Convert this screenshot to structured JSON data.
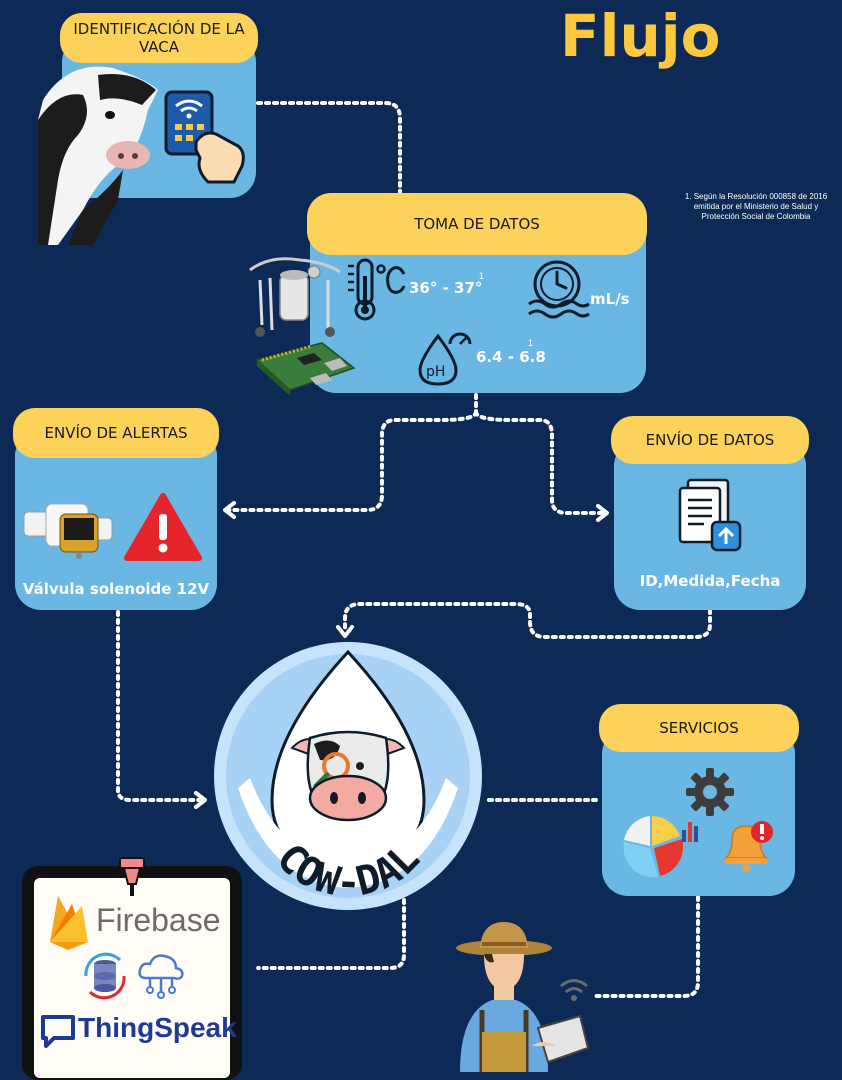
{
  "title": "Flujo",
  "footnote": "1.  Según la Resolución 000858 de 2016 emitida por el Ministerio de Salud y Protección Social de Colombia",
  "nodes": {
    "identificacion": {
      "label": "IDENTIFICACIÓN DE LA VACA"
    },
    "toma_datos": {
      "label": "TOMA DE DATOS",
      "temperature": "36° - 37°",
      "temperature_ref": "1",
      "flow_unit": "mL/s",
      "ph": "6.4 - 6.8",
      "ph_ref": "1"
    },
    "alertas": {
      "label": "ENVÍO DE ALERTAS",
      "caption": "Válvula solenoide 12V"
    },
    "envio_datos": {
      "label": "ENVÍO DE DATOS",
      "caption": "ID,Medida,Fecha"
    },
    "servicios": {
      "label": "SERVICIOS"
    },
    "center": {
      "brand": "COW-DAL"
    },
    "storage": {
      "firebase": "Firebase",
      "thingspeak": "ThingSpeak"
    }
  },
  "colors": {
    "background": "#0d2a57",
    "panel": "#6bb7e3",
    "pill": "#fcd25a",
    "title": "#fcc93e"
  }
}
